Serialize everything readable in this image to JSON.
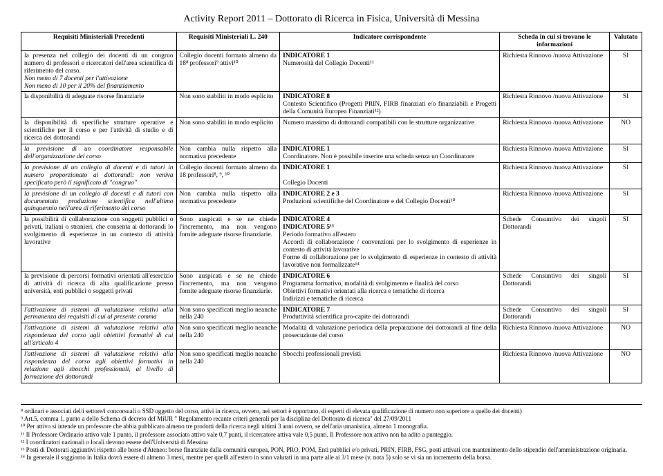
{
  "title": "Activity Report 2011 – Dottorato di Ricerca in Fisica, Università di Messina",
  "headers": {
    "c1": "Requisiti Ministeriali Precedenti",
    "c2": "Requisiti Ministeriali L. 240",
    "c3": "Indicatore corrispondente",
    "c4": "Scheda in cui si trovano le informazioni",
    "c5": "Valutato"
  },
  "rows": [
    {
      "c1": "la presenza nel collegio dei docenti di un congruo numero di professori e ricercatori dell'area scientifica di riferimento del corso.\nNon meno di 7 docenti per l'attivazione\nNon meno di 10 per il 20% del finanziamento",
      "c2": "Collegio docenti formato almeno da 18⁸ professori⁹ attivi¹⁰",
      "c3": "INDICATORE 1\nNumerosità del Collegio Docenti¹¹",
      "c4": "Richiesta Rinnovo /nuova Attivazione",
      "c5": "SI"
    },
    {
      "c1": "la disponibilità di adeguate risorse finanziarie",
      "c2": "Non sono stabiliti in modo esplicito",
      "c3": "INDICATORE 8\nContesto Scientifico (Progetti PRIN, FIRB finanziati e/o finanziabili e Progetti della Comunità Europea Finanziati¹²)",
      "c4": "Richiesta Rinnovo /nuova Attivazione",
      "c5": "SI"
    },
    {
      "c1": "la disponibilità di specifiche strutture operative e scientifiche per il corso e per l'attività di studio e di ricerca dei dottorandi",
      "c2": "Non sono stabiliti in modo esplicito",
      "c3": "Numero massimo di dottorandi compatibili con le strutture organizzative",
      "c4": "Richiesta Rinnovo /nuova Attivazione",
      "c5": "NO"
    },
    {
      "c1": "la previsione di un coordinatore responsabile dell'organizzazione del corso",
      "c2": "Non cambia nulla rispetto alla normativa precedente",
      "c3": "INDICATORE 1\nCoordinatore. Non è possibile inserire una scheda senza un Coordinatore",
      "c4": "Richiesta Rinnovo /nuova Attivazione",
      "c5": "SI"
    },
    {
      "c1": "la previsione di un collegio di docenti e di tutori in numero proporzionato ai dottorandi: non veniva specificato però il significato di \"congruo\"",
      "c2": "Collegio docenti formato almeno da 18 professori⁸, ⁹, ¹⁰",
      "c3": "INDICATORE 1\n\nCollegio Docenti",
      "c4": "Richiesta Rinnovo /nuova Attivazione",
      "c5": "SI"
    },
    {
      "c1": "la previsione di un collegio di docenti e di tutori con documentata produzione scientifica nell'ultimo quinquennio nell'area di riferimento del corso",
      "c2": "Non cambia nulla rispetto alla normativa precedente",
      "c3": "INDICATORE 2 e 3\nProduzioni scientifiche del Coordinatore e del Collegio Docenti¹⁰",
      "c4": "Richiesta Rinnovo /nuova Attivazione",
      "c5": "SI"
    },
    {
      "c1": "la possibilità di collaborazione con soggetti pubblici o privati, italiani o stranieri, che consenta ai dottorandi lo svolgimento di esperienze in un contesto di attività lavorative",
      "c2": "Sono auspicati e se ne chiede l'incremento, ma non vengono fornite adeguate risorse finanziarie.",
      "c3": "INDICATORE 4\nINDICATORE 5¹³\nPeriodo formativo all'estero\nAccordi di collaborazione / convenzioni per lo svolgimento di esperienze in contesto di attività lavorative\nForme di collaborazione per lo svolgimento di esperienze in contesto di attività lavorative non formalizzate¹⁴",
      "c4": "Schede Consuntivo dei singoli Dottorandi",
      "c5": "SI"
    },
    {
      "c1": "la previsione di percorsi formativi orientati all'esercizio di attività di ricerca di alta qualificazione presso università, enti pubblici o soggetti privati",
      "c2": "Sono auspicati e se ne chiede l'incremento, ma non vengono fornite adeguate risorse finanziarie.",
      "c3": "INDICATORE 6\nProgramma formativo, modalità di svolgimento e finalità del corso\nObiettivi formativi orientati alla ricerca e tematiche di ricerca\nIndirizzi e tematiche di ricerca",
      "c4": "Schede Consuntivo dei singoli Dottorandi",
      "c5": "SI"
    },
    {
      "c1": "l'attivazione di sistemi di valutazione relativi alla permanenza dei requisiti di cui al presente comma",
      "c2": "Non sono specificati meglio neanche nella 240",
      "c3": "INDICATORE 7\nProduttività scientifica pro-capite dei dottorandi",
      "c4": "Schede Consuntivo dei singoli Dottorandi",
      "c5": "SI"
    },
    {
      "c1": "l'attivazione di sistemi di valutazione relativi alla rispondenza del corso agli obiettivi formativi di cui all'articolo 4",
      "c2": "Non sono specificati meglio neanche nella 240",
      "c3": "Modalità di valutazione periodica della preparazione dei dottorandi al fine della prosecuzione del corso",
      "c4": "Richiesta Rinnovo /nuova Attivazione",
      "c5": "NO"
    },
    {
      "c1": "l'attivazione di sistemi di valutazione relativi alla rispondenza del corso agli obiettivi formativi in relazione agli sbocchi professionali, al livello di formazione dei dottorandi",
      "c2": "Non sono specificati meglio neanche nella 240",
      "c3": "Sbocchi professionali previsti",
      "c4": "Richiesta Rinnovo /nuova Attivazione",
      "c5": "NO"
    }
  ],
  "footnotes": [
    "⁸ ordinari e associati del/i settore/i concorsuali o SSD oggetto del corso, attivi in ricerca, ovvero, nei settori è opportuno, di esperti di elevata qualificazione di numero non superiore a quello dei docenti)",
    "⁹ Art.5, comma 1, punto a dello Schema di decreto del MiUR \" Regolamento recante criteri generali per la disciplina del Dottorato di ricerca\" del 27/09/2011",
    "¹⁰ Per attivo si intende un professore che abbia pubblicato almeno tre prodotti della ricerca negli ultimi 3 anni ovvero, se dell'aria umanistica, almeno 1 monografia.",
    "¹¹ Il Professore Ordinario attivo vale 1 punto, il professore associato attivo vale 0,7 punti, il ricercatore attiva vale 0,5 punti. Il Professore non attivo non ha adito a punteggio.",
    "¹² I coordinatori nazionali o locali devono essere dell'Università di Messina",
    "¹³ Posti di Dottorati aggiuntivi rispetto alle borse d'Ateneo: borse finanziate dalla comunità europea, PON, PRO, POM, Enti pubblici e/o privati, PRIN, FIRB, FSG, posti attivati con mantenimento dello stipendio dell'amministrazione originaria.",
    "¹⁴ In generale il soggiorno in Italia dovrà essere di almeno 3 mesi, mentre per quelli all'estero in sono valutati in una parte alle ai 3/1 mese (v. nota 5) solo se vi sia un incremento della borsa."
  ]
}
